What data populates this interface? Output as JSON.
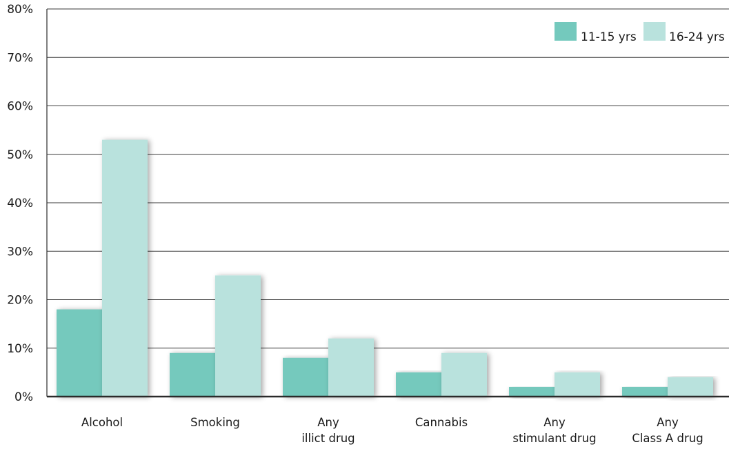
{
  "chart_data": {
    "type": "bar",
    "title": "",
    "xlabel": "",
    "ylabel": "",
    "ylim": [
      0,
      80
    ],
    "yticks": [
      0,
      10,
      20,
      30,
      40,
      50,
      60,
      70,
      80
    ],
    "ytick_labels": [
      "0%",
      "10%",
      "20%",
      "30%",
      "40%",
      "50%",
      "60%",
      "70%",
      "80%"
    ],
    "grid": true,
    "legend_position": "top-right",
    "categories": [
      [
        "Alcohol"
      ],
      [
        "Smoking"
      ],
      [
        "Any",
        "illict drug"
      ],
      [
        "Cannabis"
      ],
      [
        "Any",
        "stimulant drug"
      ],
      [
        "Any",
        "Class A drug"
      ]
    ],
    "series": [
      {
        "name": "11-15 yrs",
        "color": "#74c9bd",
        "values": [
          18,
          9,
          8,
          5,
          2,
          2
        ]
      },
      {
        "name": "16-24 yrs",
        "color": "#b9e2dd",
        "values": [
          53,
          25,
          12,
          9,
          5,
          4
        ]
      }
    ]
  }
}
